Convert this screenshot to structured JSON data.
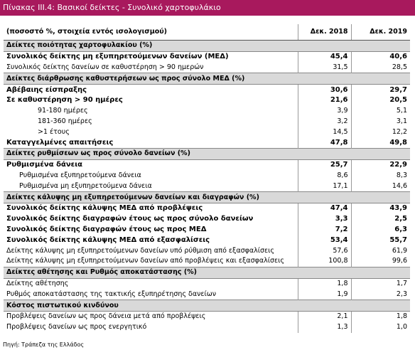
{
  "title": "Πίνακας ΙΙΙ.4: Βασικοί δείκτες - Συνολικό χαρτοφυλάκιο",
  "header": {
    "label": "(ποσοστό %, στοιχεία εντός ισολογισμού)",
    "col1": "Δεκ. 2018",
    "col2": "Δεκ. 2019"
  },
  "sections": [
    {
      "title": "Δείκτες ποιότητας χαρτοφυλακίου (%)",
      "rows": [
        {
          "label": "Συνολικός δείκτης μη εξυπηρετούμενων δανείων (ΜΕΔ)",
          "col1": "45,4",
          "col2": "40,6",
          "bold": true
        },
        {
          "label": "Συνολικός δείκτης δανείων σε καθυστέρηση > 90 ημερών",
          "col1": "31,5",
          "col2": "28,5"
        }
      ]
    },
    {
      "title": "Δείκτες διάρθρωσης καθυστερήσεων ως προς σύνολο ΜΕΔ (%)",
      "rows": [
        {
          "label": "Αβέβαιης είσπραξης",
          "col1": "30,6",
          "col2": "29,7",
          "bold": true
        },
        {
          "label": "Σε καθυστέρηση > 90 ημέρες",
          "col1": "21,6",
          "col2": "20,5",
          "bold": true,
          "children": [
            {
              "label": "91-180 ημέρες",
              "col1": "3,9",
              "col2": "5,1"
            },
            {
              "label": "181-360 ημέρες",
              "col1": "3,2",
              "col2": "3,1"
            },
            {
              "label": ">1 έτους",
              "col1": "14,5",
              "col2": "12,2"
            }
          ]
        },
        {
          "label": "Καταγγελμένες απαιτήσεις",
          "col1": "47,8",
          "col2": "49,8",
          "bold": true
        }
      ]
    },
    {
      "title": "Δείκτες ρυθμίσεων ως προς σύνολο δανείων (%)",
      "rows": [
        {
          "label": "Ρυθμισμένα δάνεια",
          "col1": "25,7",
          "col2": "22,9",
          "bold": true,
          "children": [
            {
              "label": "Ρυθμισμένα εξυπηρετούμενα δάνεια",
              "col1": "8,6",
              "col2": "8,3"
            },
            {
              "label": "Ρυθμισμένα μη εξυπηρετούμενα δάνεια",
              "col1": "17,1",
              "col2": "14,6"
            }
          ]
        }
      ]
    },
    {
      "title": "Δείκτες κάλυψης μη εξυπηρετούμενων δανείων και διαγραφών (%)",
      "rows": [
        {
          "label": "Συνολικός δείκτης κάλυψης ΜΕΔ από προβλέψεις",
          "col1": "47,4",
          "col2": "43,9",
          "bold": true
        },
        {
          "label": "Συνολικός δείκτης διαγραφών  έτους  ως προς σύνολο δανείων",
          "col1": "3,3",
          "col2": "2,5",
          "bold": true
        },
        {
          "label": "Συνολικός δείκτης διαγραφών  έτους ως προς ΜΕΔ",
          "col1": "7,2",
          "col2": "6,3",
          "bold": true
        },
        {
          "label": "Συνολικός δείκτης κάλυψης ΜΕΔ από εξασφαλίσεις",
          "col1": "53,4",
          "col2": "55,7",
          "bold": true
        },
        {
          "label": "Δείκτης κάλυψης μη εξυπηρετούμενων δανείων υπό ρύθμιση από εξασφαλίσεις",
          "col1": "57,6",
          "col2": "61,9"
        },
        {
          "label": "Δείκτης κάλυψης μη εξυπηρετούμενων δανείων από προβλέψεις και εξασφαλίσεις",
          "col1": "100,8",
          "col2": "99,6"
        }
      ]
    },
    {
      "title": "Δείκτες αθέτησης και Ρυθμός αποκατάστασης  (%)",
      "rows": [
        {
          "label": "Δείκτης αθέτησης",
          "col1": "1,8",
          "col2": "1,7"
        },
        {
          "label": "Ρυθμός αποκατάστασης της τακτικής εξυπηρέτησης δανείων",
          "col1": "1,9",
          "col2": "2,3"
        }
      ]
    },
    {
      "title": "Κόστος πιστωτικού κινδύνου",
      "rows": [
        {
          "label": "Προβλέψεις δανείων ως προς δάνεια μετά από προβλέψεις",
          "col1": "2,1",
          "col2": "1,8"
        },
        {
          "label": "Προβλέψεις δανείων ως προς ενεργητικό",
          "col1": "1,3",
          "col2": "1,0"
        }
      ]
    }
  ],
  "source": "Πηγή: Τράπεζα της Ελλάδος"
}
